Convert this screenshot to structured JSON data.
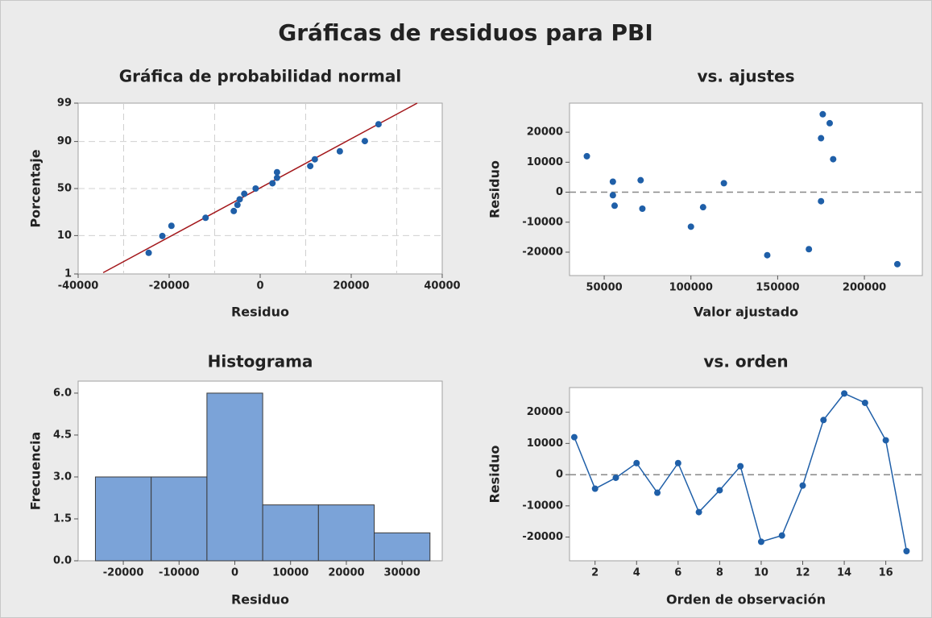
{
  "title": "Gráficas de residuos para PBI",
  "chart_data": [
    {
      "type": "probability",
      "title": "Gráfica de probabilidad normal",
      "xlabel": "Residuo",
      "ylabel": "Porcentaje",
      "x": [
        -24500,
        -21500,
        -19500,
        -12000,
        -5800,
        -5000,
        -4500,
        -3500,
        -1000,
        2700,
        3700,
        3700,
        11000,
        12000,
        17500,
        23000,
        26000
      ],
      "y": [
        4.0,
        9.8,
        15.5,
        21.3,
        27.0,
        32.8,
        38.5,
        44.3,
        50.0,
        55.7,
        61.5,
        67.2,
        73.0,
        78.7,
        84.5,
        90.2,
        96.0
      ],
      "color": "#1f5fa8",
      "fit_line": {
        "x": [
          -34500,
          34500
        ],
        "y": [
          1.1,
          99
        ],
        "color": "#a3171b"
      },
      "xlim": [
        -40000,
        40000
      ],
      "ylim": [
        1,
        99
      ],
      "xticks": [
        -40000,
        -20000,
        0,
        20000,
        40000
      ],
      "yticks": [
        1,
        10,
        50,
        90,
        99
      ],
      "xgrid": [
        -30000,
        -10000,
        10000,
        30000
      ],
      "ygrid": [
        10,
        50,
        90
      ]
    },
    {
      "type": "scatter",
      "title": "vs. ajustes",
      "xlabel": "Valor ajustado",
      "ylabel": "Residuo",
      "x": [
        40000,
        55000,
        55000,
        56000,
        71000,
        72000,
        100000,
        107000,
        119000,
        144000,
        168000,
        175000,
        175000,
        176000,
        180000,
        182000,
        219000
      ],
      "values": [
        12000,
        3500,
        -1000,
        -4500,
        4000,
        -5500,
        -11500,
        -5000,
        3000,
        -21000,
        -19000,
        -3000,
        18000,
        26000,
        23000,
        11000,
        -24000
      ],
      "color": "#1f5fa8",
      "xlim": [
        30000,
        233400
      ],
      "ylim": [
        -27800,
        29700
      ],
      "xticks": [
        50000,
        100000,
        150000,
        200000
      ],
      "yticks": [
        -20000,
        -10000,
        0,
        10000,
        20000
      ],
      "reference_line": 0
    },
    {
      "type": "histogram",
      "title": "Histograma",
      "xlabel": "Residuo",
      "ylabel": "Frecuencia",
      "bins": [
        -25000,
        -15000,
        -5000,
        5000,
        15000,
        25000,
        35000
      ],
      "values": [
        3,
        3,
        6,
        2,
        2,
        1
      ],
      "color": "#7ba3d8",
      "xlim": [
        -28100,
        37200
      ],
      "ylim": [
        0,
        6.43
      ],
      "xticks": [
        -20000,
        -10000,
        0,
        10000,
        20000,
        30000
      ],
      "yticks": [
        {
          "value": 0,
          "label": "0.0"
        },
        {
          "value": 1.5,
          "label": "1.5"
        },
        {
          "value": 3,
          "label": "3.0"
        },
        {
          "value": 4.5,
          "label": "4.5"
        },
        {
          "value": 6,
          "label": "6.0"
        }
      ]
    },
    {
      "type": "line",
      "title": "vs. orden",
      "xlabel": "Orden de observación",
      "ylabel": "Residuo",
      "x": [
        1,
        2,
        3,
        4,
        5,
        6,
        7,
        8,
        9,
        10,
        11,
        12,
        13,
        14,
        15,
        16,
        17
      ],
      "values": [
        12000,
        -4500,
        -1000,
        3700,
        -5800,
        3700,
        -12000,
        -5000,
        2700,
        -21500,
        -19500,
        -3500,
        17500,
        26000,
        23000,
        11000,
        -24500
      ],
      "color": "#1f5fa8",
      "xlim": [
        0.77,
        17.76
      ],
      "ylim": [
        -27600,
        27900
      ],
      "xticks": [
        2,
        4,
        6,
        8,
        10,
        12,
        14,
        16
      ],
      "yticks": [
        -20000,
        -10000,
        0,
        10000,
        20000
      ],
      "reference_line": 0
    }
  ]
}
